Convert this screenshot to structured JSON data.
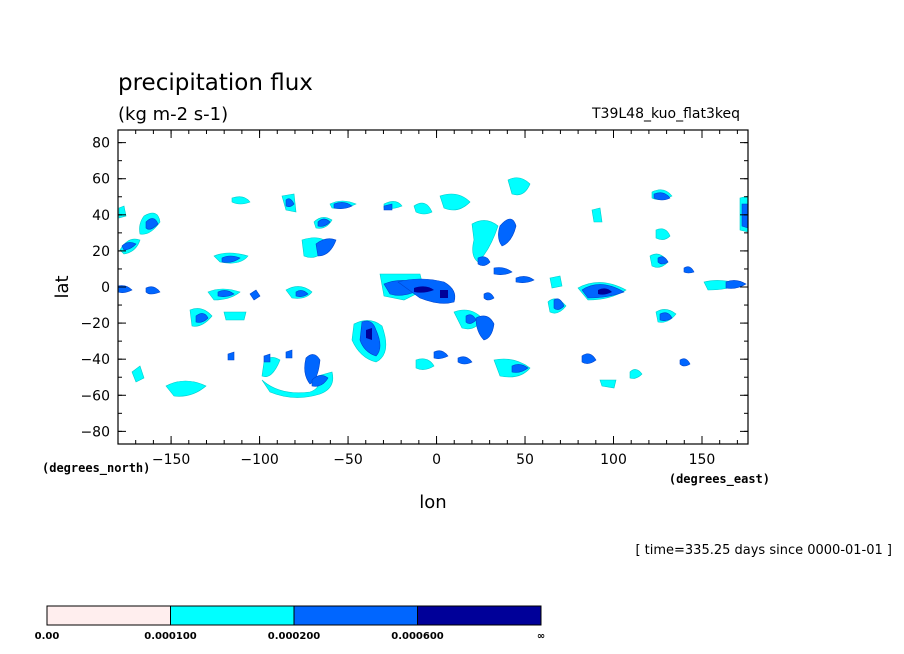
{
  "chart_data": {
    "type": "heatmap",
    "title": "precipitation flux",
    "units": "(kg m-2 s-1)",
    "run_name": "T39L48_kuo_flat3keq",
    "xlabel": "lon",
    "ylabel": "lat",
    "x_units": "(degrees_east)",
    "y_units": "(degrees_north)",
    "xlim": [
      -180,
      176
    ],
    "ylim": [
      -87,
      87
    ],
    "x_ticks": [
      -150,
      -100,
      -50,
      0,
      50,
      100,
      150
    ],
    "x_tick_labels": [
      "−150",
      "−100",
      "−50",
      "0",
      "50",
      "100",
      "150"
    ],
    "y_ticks": [
      80,
      60,
      40,
      20,
      0,
      -20,
      -40,
      -60,
      -80
    ],
    "y_tick_labels": [
      "80",
      "60",
      "40",
      "20",
      "0",
      "−20",
      "−40",
      "−60",
      "−80"
    ],
    "grid": false,
    "time_note": "[ time=335.25 days since 0000-01-01 ]",
    "colorbar": {
      "levels": [
        0.0,
        0.0001,
        0.0002,
        0.0006
      ],
      "level_labels": [
        "0.00",
        "0.000100",
        "0.000200",
        "0.000600",
        "∞"
      ],
      "colors": [
        "#ffeeee",
        "#00ffff",
        "#0066ff",
        "#000099"
      ]
    },
    "regions": [
      {
        "lon": -178,
        "lat": 40,
        "level": 1
      },
      {
        "lon": -177,
        "lat": 0,
        "level": 2
      },
      {
        "lon": -170,
        "lat": 24,
        "level": 2
      },
      {
        "lon": -160,
        "lat": 36,
        "level": 2
      },
      {
        "lon": -157,
        "lat": 0,
        "level": 2
      },
      {
        "lon": -165,
        "lat": -48,
        "level": 1
      },
      {
        "lon": -140,
        "lat": -58,
        "level": 1
      },
      {
        "lon": -135,
        "lat": -18,
        "level": 2
      },
      {
        "lon": -123,
        "lat": 50,
        "level": 1
      },
      {
        "lon": -117,
        "lat": 17,
        "level": 2
      },
      {
        "lon": -117,
        "lat": -18,
        "level": 2
      },
      {
        "lon": -120,
        "lat": -40,
        "level": 2
      },
      {
        "lon": -120,
        "lat": 0,
        "level": 2
      },
      {
        "lon": -107,
        "lat": -2,
        "level": 2
      },
      {
        "lon": -98,
        "lat": -4,
        "level": 3
      },
      {
        "lon": -105,
        "lat": 26,
        "level": 2
      },
      {
        "lon": -95,
        "lat": -42,
        "level": 2
      },
      {
        "lon": -82,
        "lat": 50,
        "level": 2
      },
      {
        "lon": -78,
        "lat": -2,
        "level": 2
      },
      {
        "lon": -85,
        "lat": -48,
        "level": 1
      },
      {
        "lon": -72,
        "lat": -54,
        "level": 2
      },
      {
        "lon": -70,
        "lat": -43,
        "level": 2
      },
      {
        "lon": -65,
        "lat": 22,
        "level": 2
      },
      {
        "lon": -60,
        "lat": 37,
        "level": 2
      },
      {
        "lon": -52,
        "lat": 46,
        "level": 2
      },
      {
        "lon": -36,
        "lat": -28,
        "level": 2
      },
      {
        "lon": -18,
        "lat": 47,
        "level": 1
      },
      {
        "lon": -14,
        "lat": 2,
        "level": 1
      },
      {
        "lon": -3,
        "lat": 0,
        "level": 2
      },
      {
        "lon": -1,
        "lat": -3,
        "level": 3
      },
      {
        "lon": 12,
        "lat": -3,
        "level": 3
      },
      {
        "lon": 13,
        "lat": 49,
        "level": 1
      },
      {
        "lon": 30,
        "lat": -16,
        "level": 2
      },
      {
        "lon": 32,
        "lat": -28,
        "level": 2
      },
      {
        "lon": 37,
        "lat": 18,
        "level": 2
      },
      {
        "lon": 43,
        "lat": 38,
        "level": 2
      },
      {
        "lon": 48,
        "lat": 58,
        "level": 1
      },
      {
        "lon": -3,
        "lat": -38,
        "level": 2
      },
      {
        "lon": 17,
        "lat": -40,
        "level": 2
      },
      {
        "lon": 47,
        "lat": -46,
        "level": 2
      },
      {
        "lon": 68,
        "lat": 6,
        "level": 2
      },
      {
        "lon": 70,
        "lat": -10,
        "level": 2
      },
      {
        "lon": 90,
        "lat": -40,
        "level": 2
      },
      {
        "lon": 97,
        "lat": -2,
        "level": 3
      },
      {
        "lon": 107,
        "lat": -3,
        "level": 3
      },
      {
        "lon": 117,
        "lat": 1,
        "level": 2
      },
      {
        "lon": 130,
        "lat": 50,
        "level": 2
      },
      {
        "lon": 130,
        "lat": 15,
        "level": 2
      },
      {
        "lon": 130,
        "lat": -16,
        "level": 2
      },
      {
        "lon": 143,
        "lat": 10,
        "level": 2
      },
      {
        "lon": 145,
        "lat": -41,
        "level": 2
      },
      {
        "lon": 175,
        "lat": 40,
        "level": 2
      },
      {
        "lon": 170,
        "lat": 2,
        "level": 2
      }
    ]
  }
}
